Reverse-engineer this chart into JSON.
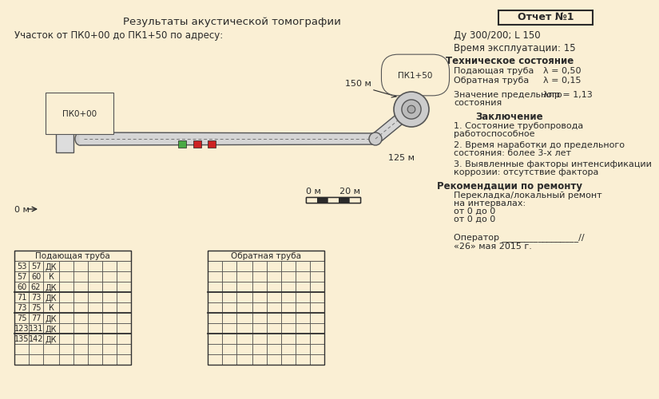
{
  "bg_color": "#faefd4",
  "title": "Результаты акустической томографии",
  "report_box_text": "Отчет №1",
  "subtitle": "Участок от ПК0+00 до ПК1+50 по адресу:",
  "right_info_1": "Ду 300/200; L 150",
  "right_info_2": "Время эксплуатации: 15",
  "tech_state_title": "Техническое состояние",
  "ts_label1": "Подающая труба",
  "ts_val1": "λ = 0,50",
  "ts_label2": "Обратная труба",
  "ts_val2": "λ = 0,15",
  "predel_label1": "Значение предельного",
  "predel_label2": "состояния",
  "predel_value": "λпр = 1,13",
  "conclusion_title": "Заключение",
  "concl1a": "1. Состояние трубопровода",
  "concl1b": "работоспособное",
  "concl2a": "2. Время наработки до предельного",
  "concl2b": "состояния: более 3-х лет",
  "concl3a": "3. Выявленные факторы интенсификации",
  "concl3b": "коррозии: отсутствие фактора",
  "recom_title": "Рекомендации по ремонту",
  "recom1": "Перекладка/локальный ремонт",
  "recom2": "на интервалах:",
  "recom3": "от 0 до 0",
  "recom4": "от 0 до 0",
  "operator_line": "Оператор _________________//",
  "date_line": "«26» мая 2015 г.",
  "pk_start": "ПК0+00",
  "pk_end": "ПК1+50",
  "dist_top": "150 м",
  "dist_bot": "125 м",
  "scale_left": "0 м",
  "scale_right": "20 м",
  "ruler_label": "0 м",
  "table1_title": "Подающая труба",
  "table1_rows": [
    [
      "53",
      "57",
      "ДК"
    ],
    [
      "57",
      "60",
      "К"
    ],
    [
      "60",
      "62",
      "ДК"
    ],
    [
      "71",
      "73",
      "ДК"
    ],
    [
      "73",
      "75",
      "К"
    ],
    [
      "75",
      "77",
      "ДК"
    ],
    [
      "123",
      "131",
      "ДК"
    ],
    [
      "135",
      "142",
      "ДК"
    ]
  ],
  "table2_title": "Обратная труба",
  "n_data_rows": 8,
  "n_extra_rows": 2,
  "n_data_cols": 3,
  "n_extra_cols": 5
}
